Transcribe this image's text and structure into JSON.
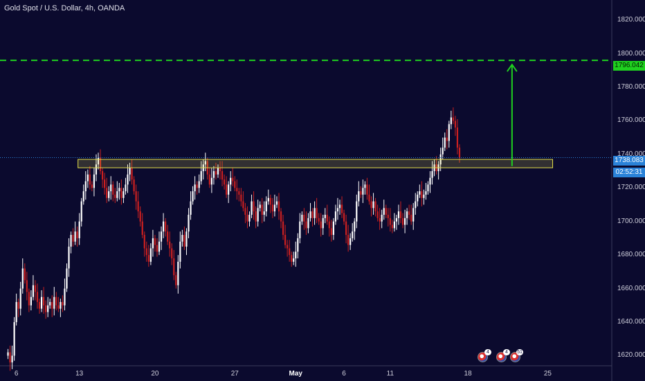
{
  "header": {
    "title": "Gold Spot / U.S. Dollar, 4h, OANDA"
  },
  "price_tags": {
    "target": "1796.042",
    "last": "1738.083",
    "timer": "02:52:31"
  },
  "events": [
    {
      "icon": "us-flag-icon",
      "count": "4"
    },
    {
      "icon": "us-flag-icon",
      "count": "4"
    },
    {
      "icon": "us-flag-icon",
      "count": "51"
    }
  ],
  "colors": {
    "background": "#0b0a2e",
    "bull": "#ffffff",
    "bear": "#cc2020",
    "zone": "#e5e04a",
    "target": "#1fd11f",
    "last": "#2a82d8"
  },
  "chart_data": {
    "type": "candlestick",
    "title": "Gold Spot / U.S. Dollar, 4h, OANDA",
    "timeframe": "4h",
    "ylim": [
      1614,
      1832
    ],
    "y_ticks": [
      1620,
      1640,
      1660,
      1680,
      1700,
      1720,
      1740,
      1760,
      1780,
      1800,
      1820
    ],
    "y_tick_labels": [
      "1620.000",
      "1640.000",
      "1660.000",
      "1680.000",
      "1700.000",
      "1720.000",
      "1740.000",
      "1760.000",
      "1780.000",
      "1800.000",
      "1820.000"
    ],
    "x_tick_labels": [
      {
        "label": "6",
        "bar": 4
      },
      {
        "label": "13",
        "bar": 34
      },
      {
        "label": "20",
        "bar": 70
      },
      {
        "label": "27",
        "bar": 108
      },
      {
        "label": "May",
        "bar": 137,
        "bold": true
      },
      {
        "label": "6",
        "bar": 160
      },
      {
        "label": "11",
        "bar": 182
      },
      {
        "label": "18",
        "bar": 219
      },
      {
        "label": "25",
        "bar": 257
      }
    ],
    "total_bars": 288,
    "closes": [
      1622,
      1616,
      1620,
      1640,
      1652,
      1648,
      1660,
      1672,
      1665,
      1658,
      1650,
      1655,
      1662,
      1658,
      1652,
      1648,
      1655,
      1650,
      1646,
      1650,
      1652,
      1648,
      1655,
      1650,
      1648,
      1652,
      1650,
      1660,
      1672,
      1685,
      1692,
      1688,
      1694,
      1690,
      1700,
      1712,
      1718,
      1724,
      1728,
      1722,
      1720,
      1728,
      1734,
      1738,
      1730,
      1725,
      1720,
      1714,
      1718,
      1722,
      1716,
      1714,
      1718,
      1720,
      1714,
      1718,
      1722,
      1728,
      1732,
      1725,
      1718,
      1712,
      1706,
      1700,
      1692,
      1684,
      1680,
      1676,
      1684,
      1690,
      1686,
      1682,
      1688,
      1694,
      1700,
      1694,
      1688,
      1684,
      1678,
      1668,
      1662,
      1676,
      1688,
      1692,
      1685,
      1694,
      1704,
      1712,
      1718,
      1722,
      1720,
      1724,
      1730,
      1734,
      1736,
      1728,
      1722,
      1726,
      1730,
      1728,
      1732,
      1730,
      1725,
      1722,
      1716,
      1722,
      1726,
      1724,
      1720,
      1718,
      1716,
      1712,
      1708,
      1704,
      1700,
      1704,
      1712,
      1706,
      1700,
      1708,
      1710,
      1704,
      1706,
      1712,
      1714,
      1710,
      1706,
      1710,
      1712,
      1706,
      1700,
      1692,
      1686,
      1684,
      1680,
      1676,
      1678,
      1682,
      1690,
      1700,
      1704,
      1700,
      1696,
      1702,
      1706,
      1702,
      1708,
      1702,
      1700,
      1696,
      1702,
      1704,
      1700,
      1696,
      1692,
      1700,
      1706,
      1708,
      1710,
      1705,
      1700,
      1692,
      1686,
      1690,
      1694,
      1700,
      1712,
      1718,
      1716,
      1720,
      1722,
      1716,
      1712,
      1708,
      1712,
      1706,
      1702,
      1700,
      1704,
      1708,
      1704,
      1702,
      1698,
      1696,
      1700,
      1702,
      1706,
      1702,
      1698,
      1702,
      1706,
      1704,
      1700,
      1708,
      1712,
      1716,
      1718,
      1714,
      1716,
      1718,
      1722,
      1726,
      1730,
      1734,
      1730,
      1734,
      1740,
      1744,
      1750,
      1748,
      1758,
      1762,
      1760,
      1756,
      1744,
      1738
    ],
    "series": [
      {
        "name": "",
        "type": "support-zone",
        "y_range": [
          1732,
          1737
        ],
        "x_range_bars": [
          34,
          260
        ]
      },
      {
        "name": "",
        "type": "horizontal-dashed",
        "y": 1796.042
      },
      {
        "name": "",
        "type": "arrow",
        "from": 1733,
        "to": 1796,
        "bar": 240
      },
      {
        "name": "",
        "type": "last-price-line",
        "y": 1738.083
      }
    ]
  }
}
